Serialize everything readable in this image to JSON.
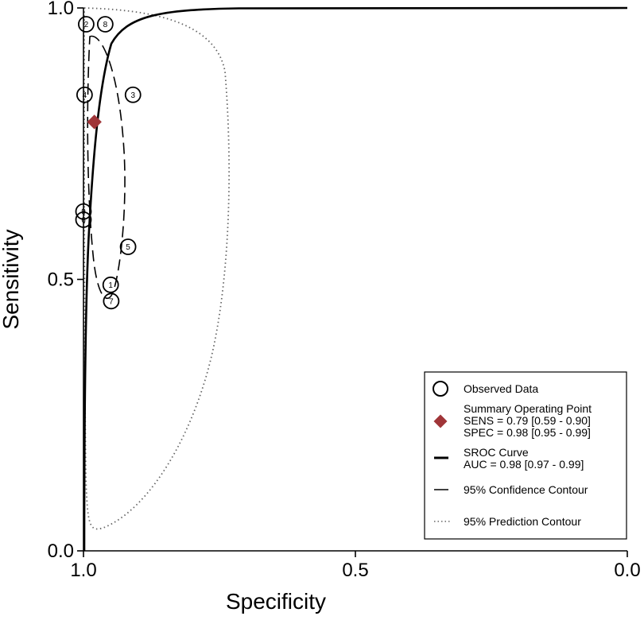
{
  "chart_data": {
    "type": "scatter",
    "xlabel": "Specificity",
    "ylabel": "Sensitivity",
    "x_axis": {
      "reversed": true,
      "range": [
        1.0,
        0.0
      ],
      "ticks": [
        1.0,
        0.5,
        0.0
      ],
      "tick_labels": [
        "1.0",
        "0.5",
        "0.0"
      ]
    },
    "y_axis": {
      "range": [
        0.0,
        1.0
      ],
      "ticks": [
        0.0,
        0.5,
        1.0
      ],
      "tick_labels": [
        "0.0",
        "0.5",
        "1.0"
      ]
    },
    "grid": false,
    "legend_position": "bottom-right",
    "colors": {
      "summary_point": "#a03538",
      "lines": "#000000",
      "prediction_contour": "#666666"
    },
    "observed_data": [
      {
        "label": "1",
        "specificity": 0.95,
        "sensitivity": 0.49
      },
      {
        "label": "2",
        "specificity": 0.995,
        "sensitivity": 0.97
      },
      {
        "label": "3",
        "specificity": 0.909,
        "sensitivity": 0.84
      },
      {
        "label": "4",
        "specificity": 0.998,
        "sensitivity": 0.84
      },
      {
        "label": "5",
        "specificity": 0.918,
        "sensitivity": 0.56
      },
      {
        "label": "6",
        "specificity": 1.0,
        "sensitivity": 0.61
      },
      {
        "label": "7",
        "specificity": 0.949,
        "sensitivity": 0.46
      },
      {
        "label": "8",
        "specificity": 0.96,
        "sensitivity": 0.97
      },
      {
        "label": "9",
        "specificity": 1.0,
        "sensitivity": 0.625
      }
    ],
    "summary_point": {
      "specificity": 0.98,
      "sensitivity": 0.79
    },
    "legend": {
      "observed": "Observed Data",
      "summary": [
        "Summary Operating Point",
        "SENS = 0.79 [0.59 - 0.90]",
        "SPEC = 0.98 [0.95 - 0.99]"
      ],
      "sroc": [
        "SROC Curve",
        "AUC = 0.98 [0.97 - 0.99]"
      ],
      "confidence": "95% Confidence Contour",
      "prediction": "95% Prediction Contour"
    }
  }
}
